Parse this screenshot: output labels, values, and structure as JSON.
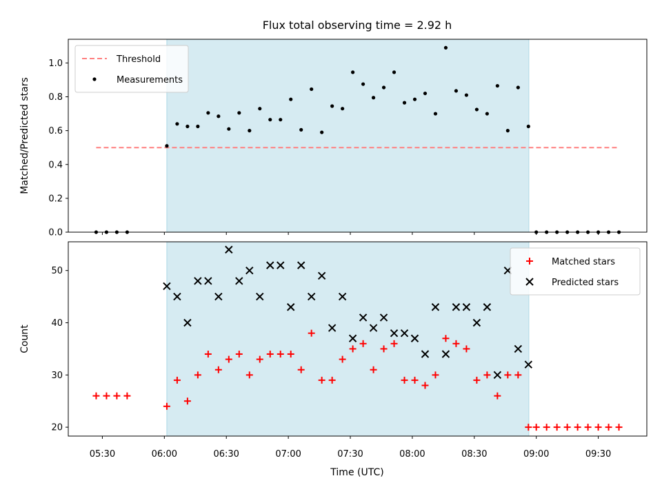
{
  "chart_data": {
    "type": "scatter",
    "title": "Flux total observing time = 2.92 h",
    "xlabel": "Time (UTC)",
    "x_ticks": [
      {
        "label": "05:30",
        "minute": 330
      },
      {
        "label": "06:00",
        "minute": 360
      },
      {
        "label": "06:30",
        "minute": 390
      },
      {
        "label": "07:00",
        "minute": 420
      },
      {
        "label": "07:30",
        "minute": 450
      },
      {
        "label": "08:00",
        "minute": 480
      },
      {
        "label": "08:30",
        "minute": 510
      },
      {
        "label": "09:00",
        "minute": 540
      },
      {
        "label": "09:30",
        "minute": 570
      }
    ],
    "x_range_minutes": [
      313.5,
      593.5
    ],
    "shaded_interval_minutes": [
      361.2,
      536.4
    ],
    "shade_color": "#add8e6",
    "panels": [
      {
        "ylabel": "Matched/Predicted stars",
        "ylim": [
          0,
          1.14
        ],
        "yticks": [
          "0.0",
          "0.2",
          "0.4",
          "0.6",
          "0.8",
          "1.0"
        ],
        "legend_position": "top-left",
        "threshold": {
          "name": "Threshold",
          "value": 0.5,
          "x_range": [
            327,
            580
          ],
          "color": "#ff7f7f"
        },
        "series": [
          {
            "name": "Measurements",
            "color": "#000000",
            "marker": "dot",
            "points": [
              [
                327,
                0
              ],
              [
                332,
                0
              ],
              [
                337,
                0
              ],
              [
                342,
                0
              ],
              [
                361.2,
                0.51
              ],
              [
                366.2,
                0.64
              ],
              [
                371.2,
                0.625
              ],
              [
                376.2,
                0.625
              ],
              [
                381.2,
                0.705
              ],
              [
                386.2,
                0.685
              ],
              [
                391.2,
                0.61
              ],
              [
                396.2,
                0.705
              ],
              [
                401.2,
                0.6
              ],
              [
                406.2,
                0.73
              ],
              [
                411.2,
                0.665
              ],
              [
                416.2,
                0.665
              ],
              [
                421.2,
                0.785
              ],
              [
                426.2,
                0.605
              ],
              [
                431.2,
                0.845
              ],
              [
                436.2,
                0.59
              ],
              [
                441.2,
                0.745
              ],
              [
                446.2,
                0.73
              ],
              [
                451.2,
                0.945
              ],
              [
                456.2,
                0.875
              ],
              [
                461.2,
                0.795
              ],
              [
                466.2,
                0.855
              ],
              [
                471.2,
                0.945
              ],
              [
                476.2,
                0.765
              ],
              [
                481.2,
                0.785
              ],
              [
                486.2,
                0.82
              ],
              [
                491.2,
                0.7
              ],
              [
                496.2,
                1.09
              ],
              [
                501.2,
                0.835
              ],
              [
                506.2,
                0.81
              ],
              [
                511.2,
                0.725
              ],
              [
                516.2,
                0.7
              ],
              [
                521.2,
                0.865
              ],
              [
                526.2,
                0.6
              ],
              [
                531.2,
                0.855
              ],
              [
                536.2,
                0.625
              ],
              [
                540,
                0
              ],
              [
                545,
                0
              ],
              [
                550,
                0
              ],
              [
                555,
                0
              ],
              [
                560,
                0
              ],
              [
                565,
                0
              ],
              [
                570,
                0
              ],
              [
                575,
                0
              ],
              [
                580,
                0
              ]
            ]
          }
        ]
      },
      {
        "ylabel": "Count",
        "ylim": [
          18.3,
          55.5
        ],
        "yticks": [
          "20",
          "30",
          "40",
          "50"
        ],
        "legend_position": "top-right",
        "series": [
          {
            "name": "Matched stars",
            "color": "#ff0000",
            "marker": "plus",
            "points": [
              [
                327,
                26
              ],
              [
                332,
                26
              ],
              [
                337,
                26
              ],
              [
                342,
                26
              ],
              [
                361.2,
                24
              ],
              [
                366.2,
                29
              ],
              [
                371.2,
                25
              ],
              [
                376.2,
                30
              ],
              [
                381.2,
                34
              ],
              [
                386.2,
                31
              ],
              [
                391.2,
                33
              ],
              [
                396.2,
                34
              ],
              [
                401.2,
                30
              ],
              [
                406.2,
                33
              ],
              [
                411.2,
                34
              ],
              [
                416.2,
                34
              ],
              [
                421.2,
                34
              ],
              [
                426.2,
                31
              ],
              [
                431.2,
                38
              ],
              [
                436.2,
                29
              ],
              [
                441.2,
                29
              ],
              [
                446.2,
                33
              ],
              [
                451.2,
                35
              ],
              [
                456.2,
                36
              ],
              [
                461.2,
                31
              ],
              [
                466.2,
                35
              ],
              [
                471.2,
                36
              ],
              [
                476.2,
                29
              ],
              [
                481.2,
                29
              ],
              [
                486.2,
                28
              ],
              [
                491.2,
                30
              ],
              [
                496.2,
                37
              ],
              [
                501.2,
                36
              ],
              [
                506.2,
                35
              ],
              [
                511.2,
                29
              ],
              [
                516.2,
                30
              ],
              [
                521.2,
                26
              ],
              [
                526.2,
                30
              ],
              [
                531.2,
                30
              ],
              [
                536.2,
                20
              ],
              [
                540,
                20
              ],
              [
                545,
                20
              ],
              [
                550,
                20
              ],
              [
                555,
                20
              ],
              [
                560,
                20
              ],
              [
                565,
                20
              ],
              [
                570,
                20
              ],
              [
                575,
                20
              ],
              [
                580,
                20
              ]
            ]
          },
          {
            "name": "Predicted stars",
            "color": "#000000",
            "marker": "x",
            "points": [
              [
                361.2,
                47
              ],
              [
                366.2,
                45
              ],
              [
                371.2,
                40
              ],
              [
                376.2,
                48
              ],
              [
                381.2,
                48
              ],
              [
                386.2,
                45
              ],
              [
                391.2,
                54
              ],
              [
                396.2,
                48
              ],
              [
                401.2,
                50
              ],
              [
                406.2,
                45
              ],
              [
                411.2,
                51
              ],
              [
                416.2,
                51
              ],
              [
                421.2,
                43
              ],
              [
                426.2,
                51
              ],
              [
                431.2,
                45
              ],
              [
                436.2,
                49
              ],
              [
                441.2,
                39
              ],
              [
                446.2,
                45
              ],
              [
                451.2,
                37
              ],
              [
                456.2,
                41
              ],
              [
                461.2,
                39
              ],
              [
                466.2,
                41
              ],
              [
                471.2,
                38
              ],
              [
                476.2,
                38
              ],
              [
                481.2,
                37
              ],
              [
                486.2,
                34
              ],
              [
                491.2,
                43
              ],
              [
                496.2,
                34
              ],
              [
                501.2,
                43
              ],
              [
                506.2,
                43
              ],
              [
                511.2,
                40
              ],
              [
                516.2,
                43
              ],
              [
                521.2,
                30
              ],
              [
                526.2,
                50
              ],
              [
                531.2,
                35
              ],
              [
                536.2,
                32
              ]
            ]
          }
        ]
      }
    ]
  }
}
